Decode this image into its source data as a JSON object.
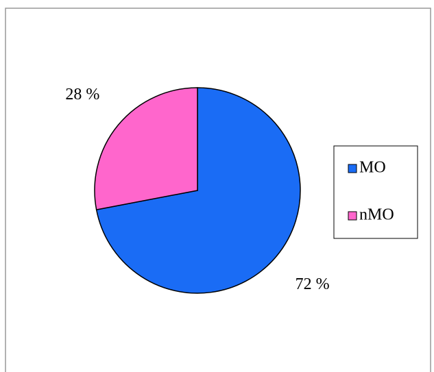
{
  "chart_data": {
    "type": "pie",
    "categories": [
      "MO",
      "nMO"
    ],
    "values": [
      72,
      28
    ],
    "value_labels": [
      "72 %",
      "28 %"
    ],
    "colors": [
      "#1a6cf5",
      "#ff66cc"
    ],
    "legend": "right"
  }
}
